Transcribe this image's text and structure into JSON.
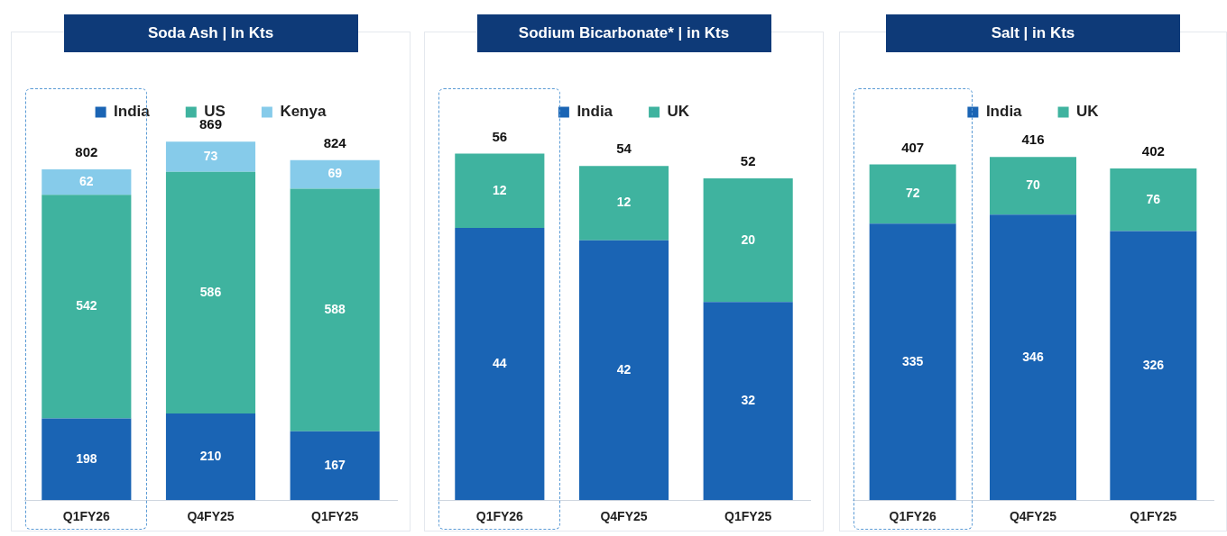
{
  "chart_data": [
    {
      "type": "bar",
      "title": "Soda Ash | In Kts",
      "categories": [
        "Q1FY26",
        "Q4FY25",
        "Q1FY25"
      ],
      "stacked": true,
      "data_labels": true,
      "legend": "top",
      "totals": [
        "802",
        "869",
        "824"
      ],
      "series": [
        {
          "name": "India",
          "color": "#1a64b4",
          "values": [
            198,
            210,
            167
          ]
        },
        {
          "name": "US",
          "color": "#3fb39f",
          "values": [
            542,
            586,
            588
          ]
        },
        {
          "name": "Kenya",
          "color": "#86cbea",
          "values": [
            62,
            73,
            69
          ]
        }
      ]
    },
    {
      "type": "bar",
      "title": "Sodium Bicarbonate* | in Kts",
      "categories": [
        "Q1FY26",
        "Q4FY25",
        "Q1FY25"
      ],
      "stacked": true,
      "data_labels": true,
      "legend": "top",
      "totals": [
        "56",
        "54",
        "52"
      ],
      "series": [
        {
          "name": "India",
          "color": "#1a64b4",
          "values": [
            44,
            42,
            32
          ]
        },
        {
          "name": "UK",
          "color": "#3fb39f",
          "values": [
            12,
            12,
            20
          ]
        }
      ]
    },
    {
      "type": "bar",
      "title": "Salt | in Kts",
      "categories": [
        "Q1FY26",
        "Q4FY25",
        "Q1FY25"
      ],
      "stacked": true,
      "data_labels": true,
      "legend": "top",
      "totals": [
        "407",
        "416",
        "402"
      ],
      "series": [
        {
          "name": "India",
          "color": "#1a64b4",
          "values": [
            335,
            346,
            326
          ]
        },
        {
          "name": "UK",
          "color": "#3fb39f",
          "values": [
            72,
            70,
            76
          ]
        }
      ]
    }
  ]
}
